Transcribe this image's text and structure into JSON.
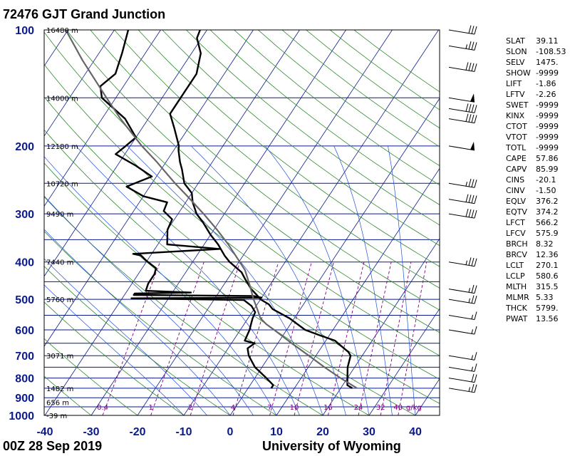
{
  "header": {
    "title": "72476 GJT Grand Junction"
  },
  "footer": {
    "date": "00Z 28 Sep 2019",
    "source": "University of Wyoming"
  },
  "indices": [
    {
      "name": "SLAT",
      "value": "39.11"
    },
    {
      "name": "SLON",
      "value": "-108.53"
    },
    {
      "name": "SELV",
      "value": "1475."
    },
    {
      "name": "SHOW",
      "value": "-9999"
    },
    {
      "name": "LIFT",
      "value": "-1.86"
    },
    {
      "name": "LFTV",
      "value": "-2.26"
    },
    {
      "name": "SWET",
      "value": "-9999"
    },
    {
      "name": "KINX",
      "value": "-9999"
    },
    {
      "name": "CTOT",
      "value": "-9999"
    },
    {
      "name": "VTOT",
      "value": "-9999"
    },
    {
      "name": "TOTL",
      "value": "-9999"
    },
    {
      "name": "CAPE",
      "value": "57.86"
    },
    {
      "name": "CAPV",
      "value": "85.99"
    },
    {
      "name": "CINS",
      "value": "-20.1"
    },
    {
      "name": "CINV",
      "value": "-1.50"
    },
    {
      "name": "EQLV",
      "value": "376.2"
    },
    {
      "name": "EQTV",
      "value": "374.2"
    },
    {
      "name": "LFCT",
      "value": "566.2"
    },
    {
      "name": "LFCV",
      "value": "575.9"
    },
    {
      "name": "BRCH",
      "value": "8.32"
    },
    {
      "name": "BRCV",
      "value": "12.36"
    },
    {
      "name": "LCLT",
      "value": "270.1"
    },
    {
      "name": "LCLP",
      "value": "580.6"
    },
    {
      "name": "MLTH",
      "value": "315.5"
    },
    {
      "name": "MLMR",
      "value": "5.33"
    },
    {
      "name": "THCK",
      "value": "5799."
    },
    {
      "name": "PWAT",
      "value": "13.56"
    }
  ],
  "chart_data": {
    "type": "line",
    "title": "72476 GJT Grand Junction",
    "xlabel": "",
    "ylabel": "",
    "x_ticks": [
      -40,
      -30,
      -20,
      -10,
      0,
      10,
      20,
      30,
      40
    ],
    "x_tick_labels": [
      "-40",
      "-30",
      "-20",
      "-10",
      "0",
      "10",
      "20",
      "30",
      "40"
    ],
    "y_ticks": [
      100,
      200,
      300,
      400,
      500,
      600,
      700,
      800,
      900,
      1000
    ],
    "y_tick_labels": [
      "100",
      "200",
      "300",
      "400",
      "500",
      "600",
      "700",
      "800",
      "900",
      "1000"
    ],
    "xlim": [
      -40,
      45
    ],
    "ylim": [
      1000,
      100
    ],
    "y_scale": "log",
    "skew_per_decade_pressure": 55,
    "height_labels": [
      {
        "p": 100,
        "text": "16480 m"
      },
      {
        "p": 150,
        "text": "14000 m"
      },
      {
        "p": 200,
        "text": "12180 m"
      },
      {
        "p": 250,
        "text": "10720 m"
      },
      {
        "p": 300,
        "text": "9490 m"
      },
      {
        "p": 400,
        "text": "7440 m"
      },
      {
        "p": 500,
        "text": "5760 m"
      },
      {
        "p": 700,
        "text": "3071 m"
      },
      {
        "p": 850,
        "text": "1482 m"
      },
      {
        "p": 925,
        "text": "656 m"
      },
      {
        "p": 1000,
        "text": "-39 m"
      }
    ],
    "mixing_ratio_labels": [
      "0.4",
      "1",
      "2",
      "4",
      "7",
      "10",
      "16",
      "24",
      "32",
      "40",
      "g/kg"
    ],
    "mixing_ratio_values": [
      0.4,
      1,
      2,
      4,
      7,
      10,
      16,
      24,
      32,
      40
    ],
    "series": [
      {
        "values": [
          [
            850,
            22.5
          ],
          [
            835,
            21
          ],
          [
            800,
            20
          ],
          [
            750,
            18.5
          ],
          [
            700,
            17.5
          ],
          [
            685,
            16.5
          ],
          [
            650,
            13
          ],
          [
            640,
            12
          ],
          [
            620,
            8
          ],
          [
            600,
            4
          ],
          [
            560,
            -1
          ],
          [
            530,
            -6
          ],
          [
            515,
            -7.5
          ],
          [
            500,
            -10
          ],
          [
            495,
            -10.5
          ],
          [
            470,
            -13.5
          ],
          [
            445,
            -16
          ],
          [
            425,
            -18
          ],
          [
            400,
            -22
          ],
          [
            385,
            -24
          ],
          [
            360,
            -27
          ],
          [
            340,
            -30
          ],
          [
            315,
            -33.5
          ],
          [
            300,
            -36
          ],
          [
            280,
            -38.5
          ],
          [
            265,
            -40
          ],
          [
            250,
            -43
          ],
          [
            230,
            -45.5
          ],
          [
            220,
            -47
          ],
          [
            205,
            -49
          ],
          [
            200,
            -49.5
          ],
          [
            180,
            -53
          ],
          [
            165,
            -56
          ],
          [
            150,
            -56
          ],
          [
            130,
            -56
          ],
          [
            115,
            -58
          ],
          [
            105,
            -61
          ],
          [
            100,
            -61.5
          ]
        ]
      },
      {
        "values": [
          [
            850,
            5
          ],
          [
            835,
            5
          ],
          [
            800,
            2.5
          ],
          [
            750,
            -1.5
          ],
          [
            700,
            -4.5
          ],
          [
            670,
            -5.8
          ],
          [
            650,
            -5
          ],
          [
            640,
            -7.5
          ],
          [
            600,
            -8
          ],
          [
            580,
            -8.5
          ],
          [
            560,
            -9
          ],
          [
            540,
            -9.3
          ],
          [
            520,
            -11
          ],
          [
            502,
            -13.5
          ],
          [
            497,
            -38
          ],
          [
            495,
            -10
          ],
          [
            490,
            -12
          ],
          [
            487,
            -38
          ],
          [
            483,
            -38
          ],
          [
            480,
            -26
          ],
          [
            475,
            -36
          ],
          [
            455,
            -36.5
          ],
          [
            430,
            -36.5
          ],
          [
            415,
            -37
          ],
          [
            395,
            -40.5
          ],
          [
            385,
            -42
          ],
          [
            381,
            -44
          ],
          [
            370,
            -26
          ],
          [
            360,
            -38
          ],
          [
            330,
            -40
          ],
          [
            310,
            -40.5
          ],
          [
            295,
            -43.5
          ],
          [
            280,
            -44
          ],
          [
            270,
            -50
          ],
          [
            255,
            -55
          ],
          [
            240,
            -51
          ],
          [
            225,
            -56
          ],
          [
            210,
            -62
          ],
          [
            200,
            -61
          ],
          [
            190,
            -60
          ],
          [
            170,
            -65
          ],
          [
            150,
            -73
          ],
          [
            140,
            -75
          ],
          [
            130,
            -73.5
          ],
          [
            115,
            -75
          ],
          [
            100,
            -77
          ]
        ]
      },
      {
        "values": [
          [
            850,
            23.5
          ],
          [
            800,
            18.5
          ],
          [
            750,
            13.5
          ],
          [
            700,
            8.5
          ],
          [
            650,
            3
          ],
          [
            600,
            -2.7
          ],
          [
            580,
            -5.2
          ],
          [
            560,
            -7.3
          ],
          [
            530,
            -9.3
          ],
          [
            500,
            -11.5
          ],
          [
            460,
            -14.3
          ],
          [
            420,
            -17.5
          ],
          [
            390,
            -21
          ],
          [
            360,
            -24.8
          ],
          [
            330,
            -29.3
          ],
          [
            300,
            -34.5
          ],
          [
            270,
            -40.5
          ],
          [
            250,
            -45
          ],
          [
            220,
            -52
          ],
          [
            200,
            -57.5
          ],
          [
            170,
            -66
          ],
          [
            150,
            -72
          ],
          [
            120,
            -82.5
          ],
          [
            100,
            -90.5
          ]
        ]
      }
    ],
    "wind_barbs": [
      {
        "p": 850,
        "speed_kt": 25
      },
      {
        "p": 800,
        "speed_kt": 20
      },
      {
        "p": 750,
        "speed_kt": 15
      },
      {
        "p": 700,
        "speed_kt": 15
      },
      {
        "p": 600,
        "speed_kt": 15
      },
      {
        "p": 550,
        "speed_kt": 15
      },
      {
        "p": 500,
        "speed_kt": 25
      },
      {
        "p": 470,
        "speed_kt": 25
      },
      {
        "p": 400,
        "speed_kt": 35
      },
      {
        "p": 300,
        "speed_kt": 40
      },
      {
        "p": 275,
        "speed_kt": 40
      },
      {
        "p": 250,
        "speed_kt": 35
      },
      {
        "p": 200,
        "speed_kt": 50
      },
      {
        "p": 170,
        "speed_kt": 40
      },
      {
        "p": 160,
        "speed_kt": 40
      },
      {
        "p": 150,
        "speed_kt": 50
      },
      {
        "p": 125,
        "speed_kt": 40
      },
      {
        "p": 110,
        "speed_kt": 35
      },
      {
        "p": 100,
        "speed_kt": 30
      }
    ]
  }
}
